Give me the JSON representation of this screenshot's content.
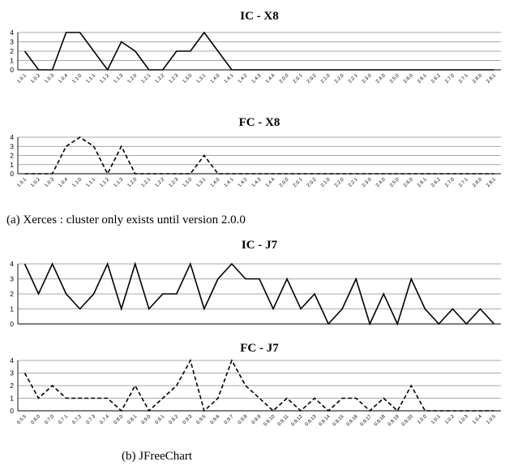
{
  "captions": {
    "a": "(a)  Xerces : cluster only exists until version 2.0.0",
    "b": "(b)  JFreeChart"
  },
  "colors": {
    "line": "#000000",
    "grid": "#8c8c8c"
  },
  "chart_data": [
    {
      "type": "line",
      "title": "IC - X8",
      "line_style": "solid",
      "ylim": [
        0,
        4
      ],
      "yticks": [
        0,
        1,
        2,
        3,
        4
      ],
      "grid": true,
      "categories": [
        "1.0.1",
        "1.0.2",
        "1.0.3",
        "1.0.4",
        "1.1.0",
        "1.1.1",
        "1.1.2",
        "1.1.3",
        "1.2.0",
        "1.2.1",
        "1.2.2",
        "1.2.3",
        "1.3.0",
        "1.3.1",
        "1.4.0",
        "1.4.1",
        "1.4.2",
        "1.4.3",
        "1.4.4",
        "2.0.0",
        "2.0.1",
        "2.0.2",
        "2.1.0",
        "2.2.0",
        "2.2.1",
        "2.3.0",
        "2.4.0",
        "2.5.0",
        "2.6.0",
        "2.6.1",
        "2.6.2",
        "2.7.0",
        "2.7.1",
        "2.8.0",
        "2.8.1"
      ],
      "values": [
        2,
        0,
        0,
        4,
        4,
        2,
        0,
        3,
        2,
        0,
        0,
        2,
        2,
        4,
        2,
        0,
        0,
        0,
        0,
        0,
        0,
        0,
        0,
        0,
        0,
        0,
        0,
        0,
        0,
        0,
        0,
        0,
        0,
        0,
        0
      ]
    },
    {
      "type": "line",
      "title": "FC - X8",
      "line_style": "dashed",
      "ylim": [
        0,
        4
      ],
      "yticks": [
        0,
        1,
        2,
        3,
        4
      ],
      "grid": true,
      "categories": [
        "1.0.1",
        "1.0.2",
        "1.0.3",
        "1.0.4",
        "1.1.0",
        "1.1.1",
        "1.1.2",
        "1.1.3",
        "1.2.0",
        "1.2.1",
        "1.2.2",
        "1.2.3",
        "1.3.0",
        "1.3.1",
        "1.4.0",
        "1.4.1",
        "1.4.2",
        "1.4.3",
        "1.4.4",
        "2.0.0",
        "2.0.1",
        "2.0.2",
        "2.1.0",
        "2.2.0",
        "2.2.1",
        "2.3.0",
        "2.4.0",
        "2.5.0",
        "2.6.0",
        "2.6.1",
        "2.6.2",
        "2.7.0",
        "2.7.1",
        "2.8.0",
        "2.8.1"
      ],
      "values": [
        0,
        0,
        0,
        3,
        4,
        3,
        0,
        3,
        0,
        0,
        0,
        0,
        0,
        2,
        0,
        0,
        0,
        0,
        0,
        0,
        0,
        0,
        0,
        0,
        0,
        0,
        0,
        0,
        0,
        0,
        0,
        0,
        0,
        0,
        0
      ]
    },
    {
      "type": "line",
      "title": "IC - J7",
      "line_style": "solid",
      "ylim": [
        0,
        4
      ],
      "yticks": [
        0,
        1,
        2,
        3,
        4
      ],
      "grid": true,
      "categories": [
        "0.5.5",
        "0.6.0",
        "0.7.0",
        "0.7.1",
        "0.7.2",
        "0.7.3",
        "0.7.4",
        "0.8.0",
        "0.8.1",
        "0.9.0",
        "0.9.1",
        "0.9.2",
        "0.9.3",
        "0.9.5",
        "0.9.6",
        "0.9.7",
        "0.9.8",
        "0.9.9",
        "0.9.10",
        "0.9.11",
        "0.9.12",
        "0.9.13",
        "0.9.14",
        "0.9.15",
        "0.9.16",
        "0.9.17",
        "0.9.18",
        "0.9.19",
        "0.9.20",
        "1.0.0",
        "1.0.1",
        "1.0.2",
        "1.0.3",
        "1.0.4",
        "1.0.5"
      ],
      "values": [
        4,
        2,
        4,
        2,
        1,
        2,
        4,
        1,
        4,
        1,
        2,
        2,
        4,
        1,
        3,
        4,
        3,
        3,
        1,
        3,
        1,
        2,
        0,
        1,
        3,
        0,
        2,
        0,
        3,
        1,
        0,
        1,
        0,
        1,
        0
      ],
      "show_xtick_labels": false
    },
    {
      "type": "line",
      "title": "FC - J7",
      "line_style": "dashed",
      "ylim": [
        0,
        4
      ],
      "yticks": [
        0,
        1,
        2,
        3,
        4
      ],
      "grid": true,
      "categories": [
        "0.5.5",
        "0.6.0",
        "0.7.0",
        "0.7.1",
        "0.7.2",
        "0.7.3",
        "0.7.4",
        "0.8.0",
        "0.8.1",
        "0.9.0",
        "0.9.1",
        "0.9.2",
        "0.9.3",
        "0.9.5",
        "0.9.6",
        "0.9.7",
        "0.9.8",
        "0.9.9",
        "0.9.10",
        "0.9.11",
        "0.9.12",
        "0.9.13",
        "0.9.14",
        "0.9.15",
        "0.9.16",
        "0.9.17",
        "0.9.18",
        "0.9.19",
        "0.9.20",
        "1.0.0",
        "1.0.1",
        "1.0.2",
        "1.0.3",
        "1.0.4",
        "1.0.5"
      ],
      "values": [
        3,
        1,
        2,
        1,
        1,
        1,
        1,
        0,
        2,
        0,
        1,
        2,
        4,
        0,
        1,
        4,
        2,
        1,
        0,
        1,
        0,
        1,
        0,
        1,
        1,
        0,
        1,
        0,
        2,
        0,
        0,
        0,
        0,
        0,
        0
      ]
    }
  ]
}
